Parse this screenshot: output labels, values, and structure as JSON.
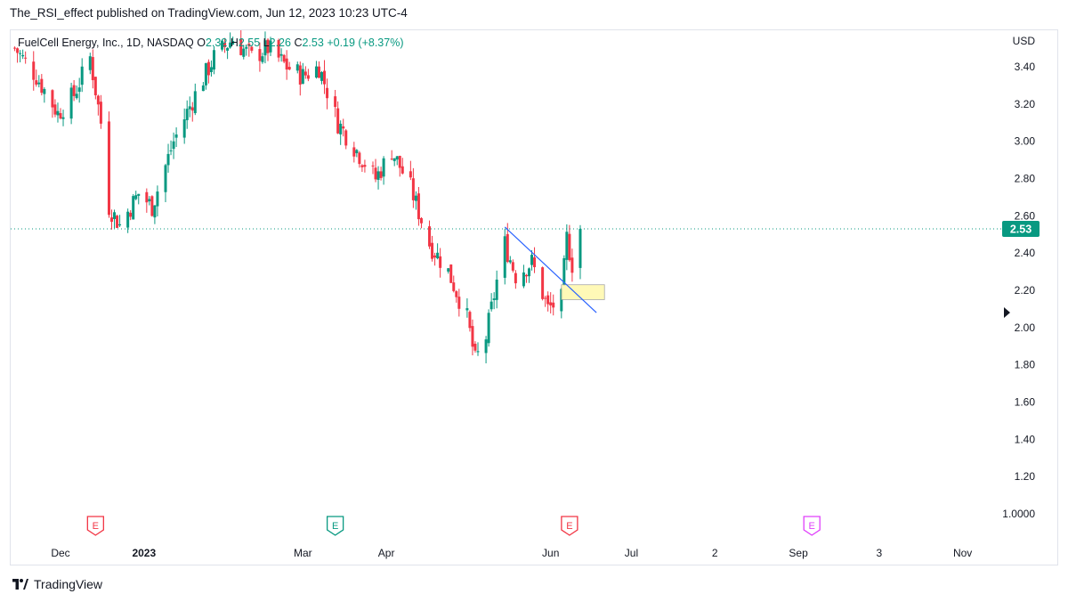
{
  "header": {
    "published_text": "The_RSI_effect published on TradingView.com, Jun 12, 2023 10:23 UTC-4"
  },
  "legend": {
    "symbol": "FuelCell Energy, Inc., 1D, NASDAQ",
    "open_label": "O",
    "open_value": "2.32",
    "high_label": "H",
    "high_value": "2.55",
    "low_label": "L",
    "low_value": "2.26",
    "close_label": "C",
    "close_value": "2.53",
    "change": "+0.19 (+8.37%)"
  },
  "footer": {
    "brand": "TradingView"
  },
  "colors": {
    "up": "#089981",
    "down": "#f23645",
    "trendline": "#2962ff",
    "price_tag": "#089981",
    "zone_fill": "#fff9b0",
    "zone_border": "#9e9e9e",
    "earnings_red": "#f23645",
    "earnings_green": "#089981",
    "earnings_purple": "#e040fb"
  },
  "chart_data": {
    "type": "candlestick",
    "currency": "USD",
    "y_axis_ticks": [
      "3.40",
      "3.20",
      "3.00",
      "2.80",
      "2.60",
      "2.40",
      "2.20",
      "2.00",
      "1.80",
      "1.60",
      "1.40",
      "1.20",
      "1.0000"
    ],
    "ylim": [
      0.97,
      3.58
    ],
    "x_axis_labels": [
      {
        "label": "Dec",
        "date": "2022-12-01"
      },
      {
        "label": "2023",
        "date": "2023-01-01",
        "bold": true
      },
      {
        "label": "Mar",
        "date": "2023-03-01"
      },
      {
        "label": "Apr",
        "date": "2023-04-01"
      },
      {
        "label": "Jun",
        "date": "2023-06-01"
      },
      {
        "label": "Jul",
        "date": "2023-07-01"
      },
      {
        "label": "2",
        "date": "2023-08-01"
      },
      {
        "label": "Sep",
        "date": "2023-09-01"
      },
      {
        "label": "3",
        "date": "2023-10-01"
      },
      {
        "label": "Nov",
        "date": "2023-11-01"
      }
    ],
    "last_price": "2.53",
    "last_price_value": 2.53,
    "path_points": [
      {
        "date": "2022-11-14",
        "close": 3.5
      },
      {
        "date": "2022-11-22",
        "close": 3.35
      },
      {
        "date": "2022-11-30",
        "close": 3.15
      },
      {
        "date": "2022-12-06",
        "close": 3.25
      },
      {
        "date": "2022-12-12",
        "close": 3.45
      },
      {
        "date": "2022-12-16",
        "close": 3.1
      },
      {
        "date": "2022-12-19",
        "close": 2.65
      },
      {
        "date": "2022-12-23",
        "close": 2.55
      },
      {
        "date": "2022-12-30",
        "close": 2.72
      },
      {
        "date": "2023-01-04",
        "close": 2.65
      },
      {
        "date": "2023-01-12",
        "close": 3.0
      },
      {
        "date": "2023-01-20",
        "close": 3.25
      },
      {
        "date": "2023-01-27",
        "close": 3.45
      },
      {
        "date": "2023-02-03",
        "close": 3.55
      },
      {
        "date": "2023-02-10",
        "close": 3.45
      },
      {
        "date": "2023-02-16",
        "close": 3.5
      },
      {
        "date": "2023-02-23",
        "close": 3.4
      },
      {
        "date": "2023-03-01",
        "close": 3.35
      },
      {
        "date": "2023-03-07",
        "close": 3.4
      },
      {
        "date": "2023-03-14",
        "close": 3.1
      },
      {
        "date": "2023-03-21",
        "close": 2.95
      },
      {
        "date": "2023-03-28",
        "close": 2.8
      },
      {
        "date": "2023-04-03",
        "close": 2.95
      },
      {
        "date": "2023-04-10",
        "close": 2.75
      },
      {
        "date": "2023-04-17",
        "close": 2.45
      },
      {
        "date": "2023-04-24",
        "close": 2.3
      },
      {
        "date": "2023-05-01",
        "close": 2.05
      },
      {
        "date": "2023-05-04",
        "close": 1.82
      },
      {
        "date": "2023-05-08",
        "close": 1.95
      },
      {
        "date": "2023-05-12",
        "close": 2.25
      },
      {
        "date": "2023-05-15",
        "close": 2.45
      },
      {
        "date": "2023-05-19",
        "close": 2.28
      },
      {
        "date": "2023-05-25",
        "close": 2.35
      },
      {
        "date": "2023-05-31",
        "close": 2.1
      },
      {
        "date": "2023-06-05",
        "close": 2.15
      },
      {
        "date": "2023-06-07",
        "close": 2.48
      },
      {
        "date": "2023-06-09",
        "close": 2.34
      },
      {
        "date": "2023-06-12",
        "close": 2.53
      }
    ],
    "trendline": {
      "start": {
        "date": "2023-05-15",
        "price": 2.54
      },
      "end": {
        "date": "2023-06-18",
        "price": 2.08
      }
    },
    "zone": {
      "start": "2023-06-05",
      "end": "2023-06-21",
      "top": 2.23,
      "bottom": 2.15
    },
    "earnings": [
      {
        "letter": "E",
        "date": "2022-12-14",
        "color": "red"
      },
      {
        "letter": "E",
        "date": "2023-03-13",
        "color": "green"
      },
      {
        "letter": "E",
        "date": "2023-06-08",
        "color": "red"
      },
      {
        "letter": "E",
        "date": "2023-09-06",
        "color": "purple"
      }
    ]
  }
}
